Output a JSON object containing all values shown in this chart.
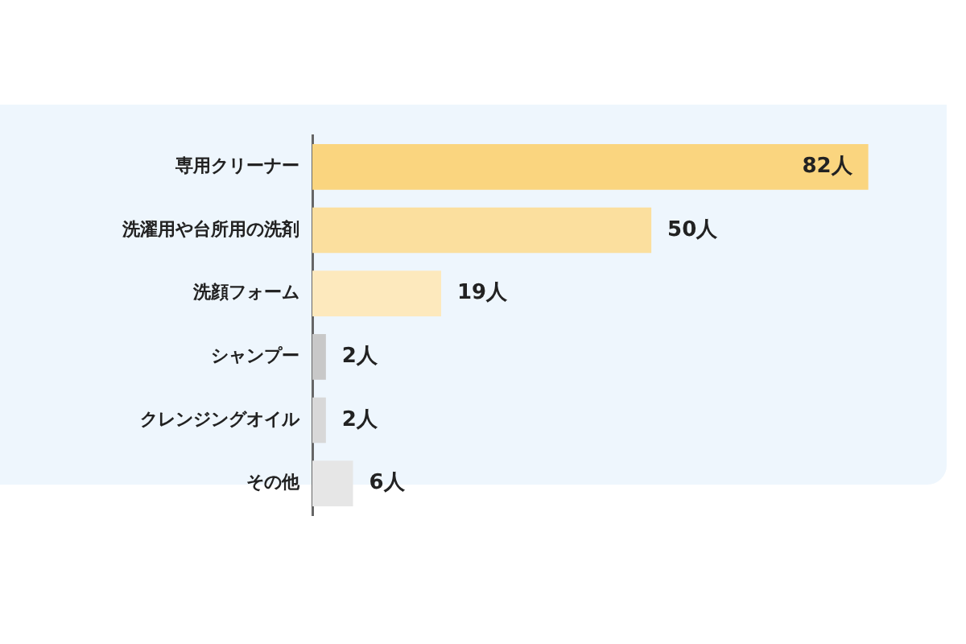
{
  "chart_data": {
    "type": "bar",
    "orientation": "horizontal",
    "categories": [
      "専用クリーナー",
      "洗濯用や台所用の洗剤",
      "洗顔フォーム",
      "シャンプー",
      "クレンジングオイル",
      "その他"
    ],
    "values": [
      82,
      50,
      19,
      2,
      2,
      6
    ],
    "colors": [
      "#fad57f",
      "#fbdf9e",
      "#fde9bd",
      "#c8c8c8",
      "#d8d8d8",
      "#e6e6e6"
    ],
    "value_labels": [
      "82人",
      "50人",
      "19人",
      "2人",
      "2人",
      "6人"
    ],
    "legend": false
  }
}
